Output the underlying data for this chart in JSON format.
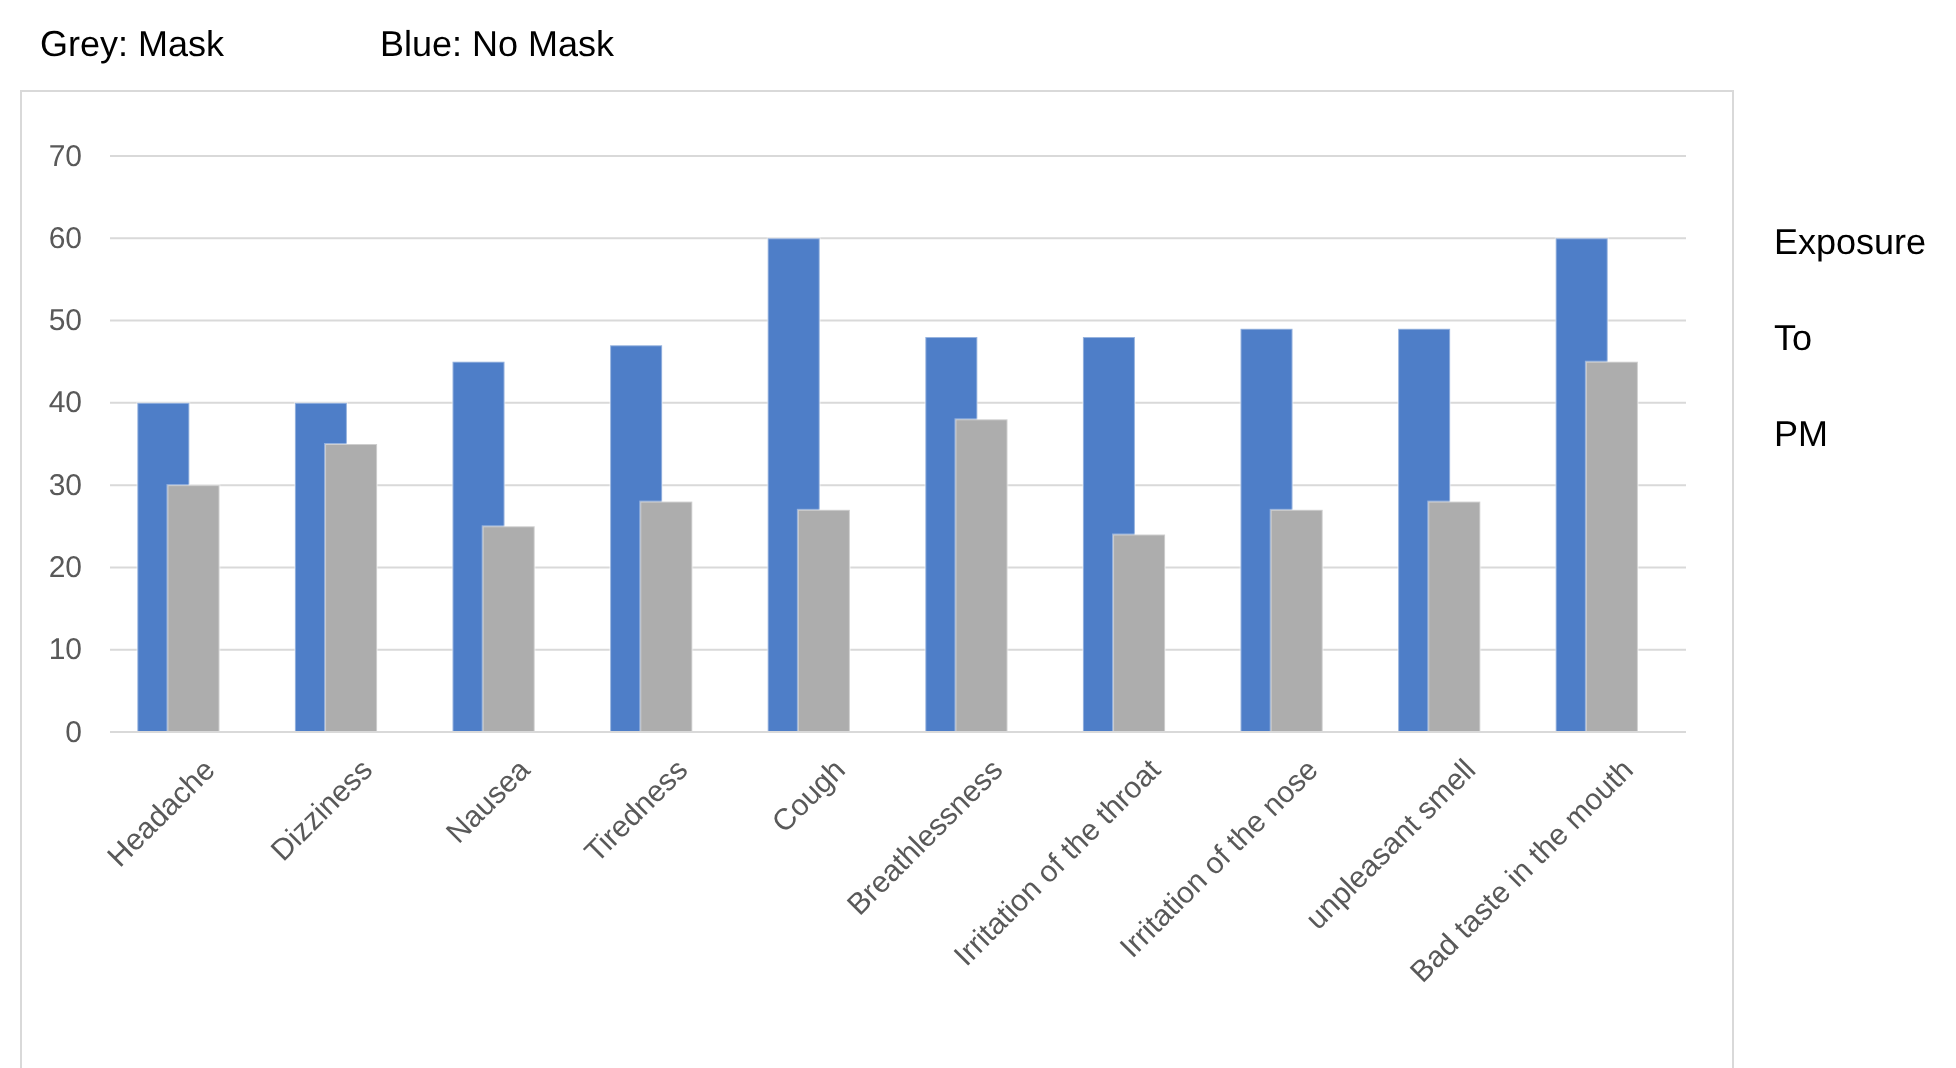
{
  "chart_data": {
    "type": "bar",
    "categories": [
      "Headache",
      "Dizziness",
      "Nausea",
      "Tiredness",
      "Cough",
      "Breathlessness",
      "Irritation of the throat",
      "Irritation of the nose",
      "unpleasant smell",
      "Bad taste in the mouth"
    ],
    "series": [
      {
        "color": "#4e7ec8",
        "values": [
          40,
          40,
          45,
          47,
          60,
          48,
          48,
          49,
          49,
          60
        ]
      },
      {
        "color": "#adadad",
        "values": [
          30,
          35,
          25,
          28,
          27,
          38,
          24,
          27,
          28,
          45
        ]
      }
    ],
    "ylim": [
      0,
      70
    ],
    "yticks": [
      0,
      10,
      20,
      30,
      40,
      50,
      60,
      70
    ],
    "grid": "y",
    "annotations": [
      "Grey: Mask",
      "Blue: No Mask",
      "Exposure To PM"
    ]
  }
}
